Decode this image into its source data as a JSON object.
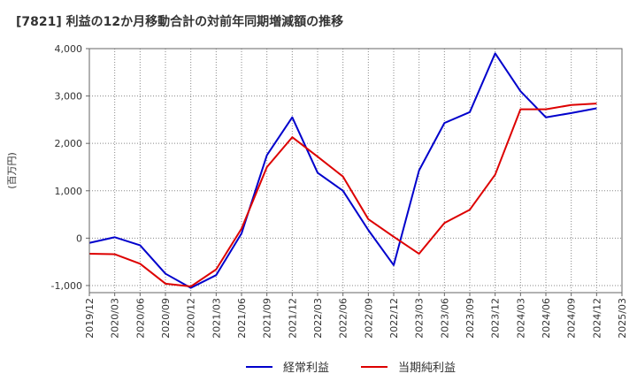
{
  "chart_data": {
    "type": "line",
    "title": "[7821]  利益の12か月移動合計の対前年同期増減額の推移",
    "ylabel": "(百万円)",
    "xlabel": "",
    "ylim": [
      -1150,
      4000
    ],
    "yticks": [
      -1000,
      0,
      1000,
      2000,
      3000,
      4000
    ],
    "ytick_labels": [
      "-1,000",
      "0",
      "1,000",
      "2,000",
      "3,000",
      "4,000"
    ],
    "categories": [
      "2019/12",
      "2020/03",
      "2020/06",
      "2020/09",
      "2020/12",
      "2021/03",
      "2021/06",
      "2021/09",
      "2021/12",
      "2022/03",
      "2022/06",
      "2022/09",
      "2022/12",
      "2023/03",
      "2023/06",
      "2023/09",
      "2023/12",
      "2024/03",
      "2024/06",
      "2024/09",
      "2024/12",
      "2025/03"
    ],
    "grid": true,
    "legend_position": "bottom",
    "series": [
      {
        "name": "経常利益",
        "color": "#0000cc",
        "values": [
          -100,
          20,
          -150,
          -750,
          -1050,
          -780,
          100,
          1750,
          2550,
          1380,
          1000,
          170,
          -570,
          1430,
          2430,
          2660,
          3900,
          3100,
          2550,
          2640,
          2740,
          null
        ]
      },
      {
        "name": "当期純利益",
        "color": "#dd0000",
        "values": [
          -330,
          -340,
          -540,
          -960,
          -1020,
          -660,
          200,
          1500,
          2130,
          1720,
          1300,
          400,
          30,
          -330,
          320,
          600,
          1340,
          2720,
          2720,
          2810,
          2840,
          null
        ]
      }
    ]
  }
}
